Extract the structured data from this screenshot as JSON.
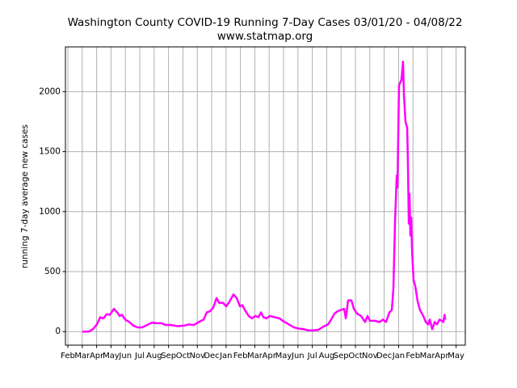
{
  "chart_data": {
    "type": "line",
    "title": "Washington County COVID-19 Running 7-Day Cases 03/01/20 - 04/08/22",
    "subtitle": "www.statmap.org",
    "y_label": "running 7-day average new cases",
    "grid": true,
    "xlim": [
      -0.17,
      27.64
    ],
    "ylim": [
      -113,
      2373
    ],
    "yticks": [
      0,
      500,
      1000,
      1500,
      2000
    ],
    "xticks": [
      {
        "value": 0,
        "label": "Feb"
      },
      {
        "value": 1,
        "label": "Mar"
      },
      {
        "value": 2,
        "label": "Apr"
      },
      {
        "value": 3,
        "label": "May"
      },
      {
        "value": 4,
        "label": "Jun"
      },
      {
        "value": 5,
        "label": "Jul"
      },
      {
        "value": 6,
        "label": "Aug"
      },
      {
        "value": 7,
        "label": "Sep"
      },
      {
        "value": 8,
        "label": "Oct"
      },
      {
        "value": 9,
        "label": "Nov"
      },
      {
        "value": 10,
        "label": "Dec"
      },
      {
        "value": 11,
        "label": "Jan"
      },
      {
        "value": 12,
        "label": "Feb"
      },
      {
        "value": 13,
        "label": "Mar"
      },
      {
        "value": 14,
        "label": "Apr"
      },
      {
        "value": 15,
        "label": "May"
      },
      {
        "value": 16,
        "label": "Jun"
      },
      {
        "value": 17,
        "label": "Jul"
      },
      {
        "value": 18,
        "label": "Aug"
      },
      {
        "value": 19,
        "label": "Sep"
      },
      {
        "value": 20,
        "label": "Oct"
      },
      {
        "value": 21,
        "label": "Nov"
      },
      {
        "value": 22,
        "label": "Dec"
      },
      {
        "value": 23,
        "label": "Jan"
      },
      {
        "value": 24,
        "label": "Feb"
      },
      {
        "value": 25,
        "label": "Mar"
      },
      {
        "value": 26,
        "label": "Apr"
      },
      {
        "value": 27,
        "label": "May"
      }
    ],
    "x": [
      1.0,
      1.46,
      1.74,
      2.02,
      2.25,
      2.47,
      2.7,
      2.92,
      3.2,
      3.43,
      3.6,
      3.76,
      3.99,
      4.27,
      4.55,
      4.83,
      5.17,
      5.51,
      5.84,
      6.18,
      6.52,
      6.8,
      7.19,
      7.64,
      8.09,
      8.43,
      8.76,
      9.1,
      9.44,
      9.66,
      9.89,
      10.11,
      10.34,
      10.51,
      10.79,
      11.01,
      11.24,
      11.52,
      11.74,
      11.97,
      12.13,
      12.36,
      12.58,
      12.81,
      13.03,
      13.26,
      13.43,
      13.6,
      13.82,
      14.04,
      14.38,
      14.72,
      14.94,
      15.22,
      15.51,
      15.73,
      16.07,
      16.4,
      16.74,
      17.08,
      17.42,
      17.75,
      18.09,
      18.31,
      18.54,
      18.76,
      18.99,
      19.21,
      19.33,
      19.49,
      19.72,
      19.89,
      20.11,
      20.39,
      20.67,
      20.84,
      21.01,
      21.35,
      21.69,
      21.91,
      22.13,
      22.36,
      22.53,
      22.64,
      22.75,
      22.87,
      22.92,
      23.03,
      23.2,
      23.31,
      23.37,
      23.48,
      23.6,
      23.65,
      23.71,
      23.76,
      23.82,
      23.88,
      23.93,
      24.04,
      24.16,
      24.33,
      24.49,
      24.72,
      24.89,
      25.06,
      25.17,
      25.34,
      25.51,
      25.67,
      25.84,
      26.01,
      26.12,
      26.2,
      26.25
    ],
    "series": [
      {
        "color": "#ff00ff",
        "values": [
          0,
          0,
          20,
          60,
          120,
          110,
          145,
          140,
          190,
          160,
          130,
          140,
          100,
          80,
          50,
          35,
          35,
          55,
          75,
          70,
          70,
          55,
          55,
          45,
          50,
          60,
          55,
          80,
          100,
          160,
          170,
          200,
          280,
          240,
          240,
          210,
          250,
          310,
          280,
          210,
          220,
          170,
          130,
          110,
          130,
          120,
          160,
          120,
          110,
          130,
          120,
          110,
          90,
          70,
          50,
          35,
          25,
          20,
          10,
          10,
          15,
          40,
          60,
          100,
          150,
          170,
          180,
          190,
          110,
          260,
          260,
          190,
          150,
          130,
          80,
          130,
          90,
          90,
          80,
          100,
          80,
          160,
          180,
          360,
          900,
          1300,
          1200,
          2050,
          2100,
          2250,
          1980,
          1750,
          1700,
          1400,
          900,
          1150,
          800,
          950,
          700,
          430,
          380,
          250,
          180,
          130,
          80,
          60,
          100,
          20,
          80,
          60,
          100,
          90,
          80,
          140,
          100
        ]
      }
    ]
  }
}
